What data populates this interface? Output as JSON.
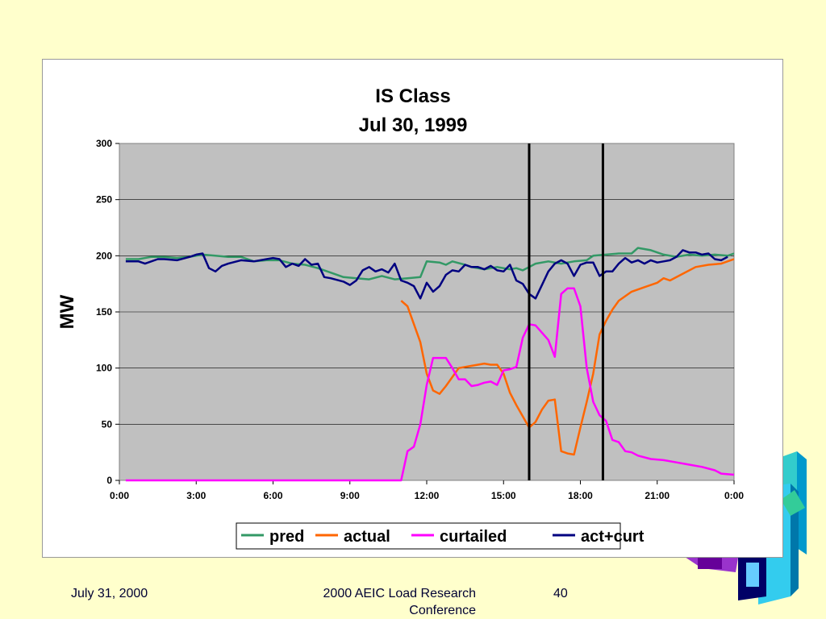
{
  "footer": {
    "date": "July 31, 2000",
    "conference": "2000 AEIC Load Research Conference",
    "page": "40"
  },
  "colors": {
    "background": "#FFFFCC",
    "plot_area": "#C0C0C0",
    "pred": "#339966",
    "actual": "#FF6600",
    "curtailed": "#FF00FF",
    "act_curt": "#000080",
    "markers": "#000000"
  },
  "chart_data": {
    "type": "line",
    "title": "IS Class",
    "subtitle": "Jul 30, 1999",
    "ylabel": "MW",
    "xlabel": "",
    "ylim": [
      0,
      300
    ],
    "yticks": [
      0,
      50,
      100,
      150,
      200,
      250,
      300
    ],
    "xlim_hours": [
      0,
      24
    ],
    "xtick_labels": [
      "0:00",
      "3:00",
      "6:00",
      "9:00",
      "12:00",
      "15:00",
      "18:00",
      "21:00",
      "0:00"
    ],
    "grid": true,
    "legend_position": "bottom",
    "vertical_markers_hours": [
      16,
      18.88
    ],
    "series": [
      {
        "name": "pred",
        "color": "#339966",
        "points": [
          [
            0.25,
            197
          ],
          [
            0.75,
            197
          ],
          [
            1.25,
            199
          ],
          [
            1.75,
            199
          ],
          [
            2.25,
            198
          ],
          [
            2.75,
            199
          ],
          [
            3.25,
            201
          ],
          [
            3.75,
            200
          ],
          [
            4.25,
            199
          ],
          [
            4.75,
            199
          ],
          [
            5.25,
            195
          ],
          [
            5.75,
            196
          ],
          [
            6.25,
            196
          ],
          [
            6.75,
            193
          ],
          [
            7.25,
            192
          ],
          [
            7.75,
            189
          ],
          [
            8.25,
            185
          ],
          [
            8.75,
            181
          ],
          [
            9.25,
            180
          ],
          [
            9.75,
            179
          ],
          [
            10.25,
            182
          ],
          [
            10.75,
            179
          ],
          [
            11.25,
            180
          ],
          [
            11.75,
            181
          ],
          [
            12.0,
            195
          ],
          [
            12.5,
            194
          ],
          [
            12.75,
            192
          ],
          [
            13.0,
            195
          ],
          [
            13.5,
            192
          ],
          [
            13.75,
            190
          ],
          [
            14.25,
            188
          ],
          [
            14.75,
            190
          ],
          [
            15.25,
            188
          ],
          [
            15.5,
            189
          ],
          [
            15.75,
            187
          ],
          [
            16.0,
            190
          ],
          [
            16.25,
            193
          ],
          [
            16.75,
            195
          ],
          [
            17.25,
            193
          ],
          [
            17.75,
            195
          ],
          [
            18.25,
            196
          ],
          [
            18.5,
            200
          ],
          [
            19.0,
            201
          ],
          [
            19.5,
            202
          ],
          [
            20.0,
            202
          ],
          [
            20.25,
            207
          ],
          [
            20.75,
            205
          ],
          [
            21.25,
            201
          ],
          [
            21.75,
            199
          ],
          [
            22.25,
            201
          ],
          [
            22.75,
            200
          ],
          [
            23.25,
            201
          ],
          [
            23.75,
            200
          ],
          [
            24.0,
            202
          ]
        ]
      },
      {
        "name": "actual",
        "color": "#FF6600",
        "points": [
          [
            11.0,
            160
          ],
          [
            11.25,
            155
          ],
          [
            11.75,
            123
          ],
          [
            12.0,
            95
          ],
          [
            12.25,
            80
          ],
          [
            12.5,
            77
          ],
          [
            12.75,
            84
          ],
          [
            13.25,
            100
          ],
          [
            13.75,
            102
          ],
          [
            14.25,
            104
          ],
          [
            14.5,
            103
          ],
          [
            14.75,
            103
          ],
          [
            15.0,
            95
          ],
          [
            15.25,
            78
          ],
          [
            15.5,
            67
          ],
          [
            15.75,
            57
          ],
          [
            16.0,
            47
          ],
          [
            16.25,
            52
          ],
          [
            16.5,
            63
          ],
          [
            16.75,
            71
          ],
          [
            17.0,
            72
          ],
          [
            17.25,
            26
          ],
          [
            17.5,
            24
          ],
          [
            17.75,
            23
          ],
          [
            18.0,
            47
          ],
          [
            18.25,
            70
          ],
          [
            18.5,
            95
          ],
          [
            18.75,
            130
          ],
          [
            19.0,
            142
          ],
          [
            19.25,
            152
          ],
          [
            19.5,
            160
          ],
          [
            20.0,
            168
          ],
          [
            20.5,
            172
          ],
          [
            21.0,
            176
          ],
          [
            21.25,
            180
          ],
          [
            21.5,
            178
          ],
          [
            22.0,
            184
          ],
          [
            22.5,
            190
          ],
          [
            23.0,
            192
          ],
          [
            23.5,
            193
          ],
          [
            24.0,
            197
          ]
        ]
      },
      {
        "name": "curtailed",
        "color": "#FF00FF",
        "points": [
          [
            0.25,
            0
          ],
          [
            11.0,
            0
          ],
          [
            11.25,
            26
          ],
          [
            11.5,
            30
          ],
          [
            11.75,
            50
          ],
          [
            12.0,
            85
          ],
          [
            12.25,
            109
          ],
          [
            12.5,
            109
          ],
          [
            12.75,
            109
          ],
          [
            13.0,
            100
          ],
          [
            13.25,
            90
          ],
          [
            13.5,
            90
          ],
          [
            13.75,
            84
          ],
          [
            14.0,
            85
          ],
          [
            14.25,
            87
          ],
          [
            14.5,
            88
          ],
          [
            14.75,
            85
          ],
          [
            15.0,
            98
          ],
          [
            15.25,
            99
          ],
          [
            15.5,
            101
          ],
          [
            15.75,
            127
          ],
          [
            16.0,
            139
          ],
          [
            16.25,
            138
          ],
          [
            16.75,
            125
          ],
          [
            17.0,
            110
          ],
          [
            17.25,
            166
          ],
          [
            17.5,
            171
          ],
          [
            17.75,
            171
          ],
          [
            18.0,
            155
          ],
          [
            18.25,
            100
          ],
          [
            18.5,
            70
          ],
          [
            18.75,
            58
          ],
          [
            19.0,
            53
          ],
          [
            19.25,
            36
          ],
          [
            19.5,
            34
          ],
          [
            19.75,
            26
          ],
          [
            20.0,
            25
          ],
          [
            20.25,
            22
          ],
          [
            20.75,
            19
          ],
          [
            21.25,
            18
          ],
          [
            21.75,
            16
          ],
          [
            22.25,
            14
          ],
          [
            22.75,
            12
          ],
          [
            23.25,
            9
          ],
          [
            23.5,
            6
          ],
          [
            24.0,
            5
          ]
        ]
      },
      {
        "name": "act+curt",
        "color": "#000080",
        "points": [
          [
            0.25,
            195
          ],
          [
            0.75,
            195
          ],
          [
            1.0,
            193
          ],
          [
            1.5,
            197
          ],
          [
            1.75,
            197
          ],
          [
            2.25,
            196
          ],
          [
            2.75,
            199
          ],
          [
            3.0,
            201
          ],
          [
            3.25,
            202
          ],
          [
            3.5,
            189
          ],
          [
            3.75,
            186
          ],
          [
            4.0,
            191
          ],
          [
            4.25,
            193
          ],
          [
            4.75,
            196
          ],
          [
            5.25,
            195
          ],
          [
            5.75,
            197
          ],
          [
            6.0,
            198
          ],
          [
            6.25,
            197
          ],
          [
            6.5,
            190
          ],
          [
            6.75,
            193
          ],
          [
            7.0,
            191
          ],
          [
            7.25,
            197
          ],
          [
            7.5,
            192
          ],
          [
            7.75,
            193
          ],
          [
            8.0,
            181
          ],
          [
            8.25,
            180
          ],
          [
            8.75,
            177
          ],
          [
            9.0,
            174
          ],
          [
            9.25,
            178
          ],
          [
            9.5,
            187
          ],
          [
            9.75,
            190
          ],
          [
            10.0,
            186
          ],
          [
            10.25,
            188
          ],
          [
            10.5,
            185
          ],
          [
            10.75,
            193
          ],
          [
            11.0,
            178
          ],
          [
            11.25,
            176
          ],
          [
            11.5,
            173
          ],
          [
            11.75,
            162
          ],
          [
            12.0,
            176
          ],
          [
            12.25,
            168
          ],
          [
            12.5,
            173
          ],
          [
            12.75,
            183
          ],
          [
            13.0,
            187
          ],
          [
            13.25,
            186
          ],
          [
            13.5,
            192
          ],
          [
            13.75,
            190
          ],
          [
            14.0,
            190
          ],
          [
            14.25,
            188
          ],
          [
            14.5,
            191
          ],
          [
            14.75,
            187
          ],
          [
            15.0,
            186
          ],
          [
            15.25,
            192
          ],
          [
            15.5,
            178
          ],
          [
            15.75,
            175
          ],
          [
            16.0,
            166
          ],
          [
            16.25,
            162
          ],
          [
            16.5,
            174
          ],
          [
            16.75,
            186
          ],
          [
            17.0,
            193
          ],
          [
            17.25,
            196
          ],
          [
            17.5,
            193
          ],
          [
            17.75,
            182
          ],
          [
            18.0,
            192
          ],
          [
            18.25,
            194
          ],
          [
            18.5,
            194
          ],
          [
            18.75,
            182
          ],
          [
            19.0,
            186
          ],
          [
            19.25,
            186
          ],
          [
            19.5,
            193
          ],
          [
            19.75,
            198
          ],
          [
            20.0,
            194
          ],
          [
            20.25,
            196
          ],
          [
            20.5,
            193
          ],
          [
            20.75,
            196
          ],
          [
            21.0,
            194
          ],
          [
            21.25,
            195
          ],
          [
            21.5,
            196
          ],
          [
            21.75,
            199
          ],
          [
            22.0,
            205
          ],
          [
            22.25,
            203
          ],
          [
            22.5,
            203
          ],
          [
            22.75,
            201
          ],
          [
            23.0,
            202
          ],
          [
            23.25,
            197
          ],
          [
            23.5,
            196
          ],
          [
            23.75,
            199
          ]
        ]
      }
    ]
  }
}
